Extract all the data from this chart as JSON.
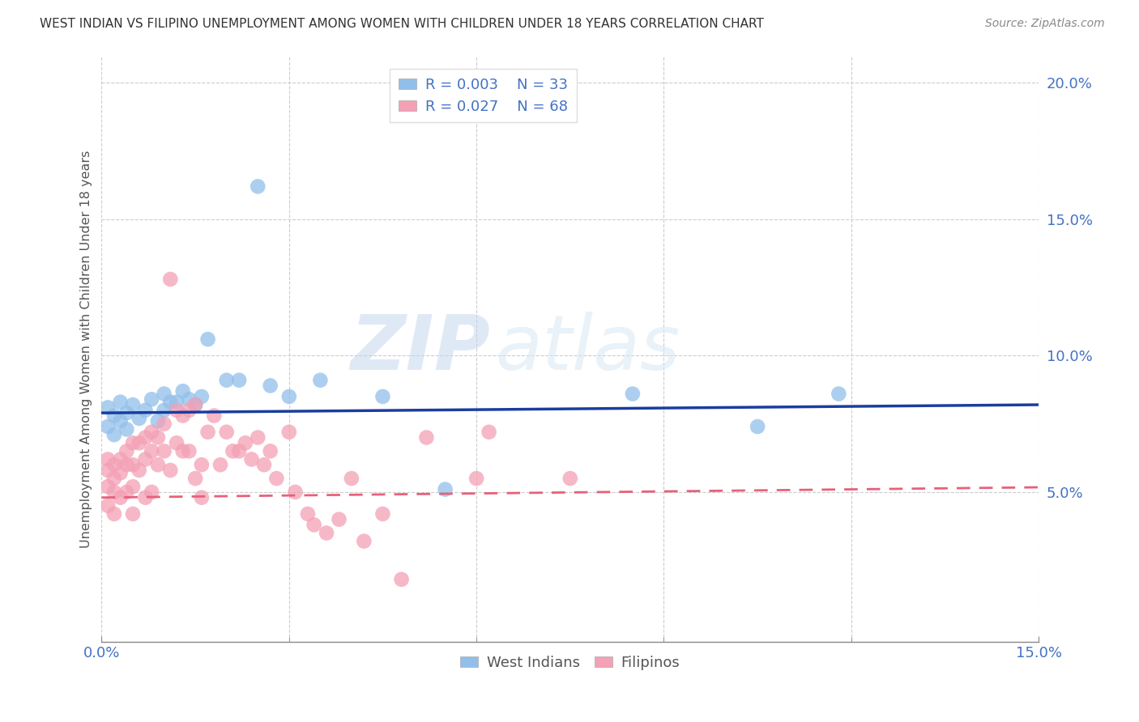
{
  "title": "WEST INDIAN VS FILIPINO UNEMPLOYMENT AMONG WOMEN WITH CHILDREN UNDER 18 YEARS CORRELATION CHART",
  "source": "Source: ZipAtlas.com",
  "ylabel": "Unemployment Among Women with Children Under 18 years",
  "watermark_zip": "ZIP",
  "watermark_atlas": "atlas",
  "xlim": [
    0.0,
    0.15
  ],
  "ylim": [
    -0.005,
    0.21
  ],
  "ytick_vals": [
    0.0,
    0.05,
    0.1,
    0.15,
    0.2
  ],
  "ytick_labels": [
    "",
    "5.0%",
    "10.0%",
    "15.0%",
    "20.0%"
  ],
  "xtick_vals": [
    0.0,
    0.15
  ],
  "xtick_labels": [
    "0.0%",
    "15.0%"
  ],
  "wi_color": "#92bfea",
  "fi_color": "#f4a0b5",
  "wi_line_color": "#1a3d9e",
  "fi_line_color": "#e8607a",
  "wi_trend_intercept": 0.079,
  "wi_trend_slope": 0.02,
  "fi_trend_intercept": 0.048,
  "fi_trend_slope": 0.025,
  "wi_x": [
    0.001,
    0.001,
    0.002,
    0.002,
    0.003,
    0.003,
    0.004,
    0.004,
    0.005,
    0.006,
    0.007,
    0.008,
    0.009,
    0.01,
    0.01,
    0.011,
    0.012,
    0.013,
    0.014,
    0.015,
    0.016,
    0.017,
    0.02,
    0.022,
    0.025,
    0.027,
    0.03,
    0.035,
    0.045,
    0.055,
    0.085,
    0.105,
    0.118
  ],
  "wi_y": [
    0.074,
    0.081,
    0.071,
    0.078,
    0.083,
    0.076,
    0.079,
    0.073,
    0.082,
    0.077,
    0.08,
    0.084,
    0.076,
    0.08,
    0.086,
    0.083,
    0.083,
    0.087,
    0.084,
    0.082,
    0.085,
    0.106,
    0.091,
    0.091,
    0.162,
    0.089,
    0.085,
    0.091,
    0.085,
    0.051,
    0.086,
    0.074,
    0.086
  ],
  "fi_x": [
    0.001,
    0.001,
    0.001,
    0.001,
    0.002,
    0.002,
    0.002,
    0.002,
    0.003,
    0.003,
    0.003,
    0.004,
    0.004,
    0.004,
    0.005,
    0.005,
    0.005,
    0.005,
    0.006,
    0.006,
    0.007,
    0.007,
    0.007,
    0.008,
    0.008,
    0.008,
    0.009,
    0.009,
    0.01,
    0.01,
    0.011,
    0.011,
    0.012,
    0.012,
    0.013,
    0.013,
    0.014,
    0.014,
    0.015,
    0.015,
    0.016,
    0.016,
    0.017,
    0.018,
    0.019,
    0.02,
    0.021,
    0.022,
    0.023,
    0.024,
    0.025,
    0.026,
    0.027,
    0.028,
    0.03,
    0.031,
    0.033,
    0.034,
    0.036,
    0.038,
    0.04,
    0.042,
    0.045,
    0.048,
    0.052,
    0.06,
    0.062,
    0.075
  ],
  "fi_y": [
    0.062,
    0.058,
    0.052,
    0.045,
    0.06,
    0.055,
    0.05,
    0.042,
    0.062,
    0.057,
    0.048,
    0.065,
    0.06,
    0.05,
    0.068,
    0.06,
    0.052,
    0.042,
    0.068,
    0.058,
    0.07,
    0.062,
    0.048,
    0.072,
    0.065,
    0.05,
    0.07,
    0.06,
    0.075,
    0.065,
    0.128,
    0.058,
    0.08,
    0.068,
    0.078,
    0.065,
    0.08,
    0.065,
    0.082,
    0.055,
    0.06,
    0.048,
    0.072,
    0.078,
    0.06,
    0.072,
    0.065,
    0.065,
    0.068,
    0.062,
    0.07,
    0.06,
    0.065,
    0.055,
    0.072,
    0.05,
    0.042,
    0.038,
    0.035,
    0.04,
    0.055,
    0.032,
    0.042,
    0.018,
    0.07,
    0.055,
    0.072,
    0.055
  ],
  "legend_label_west": "West Indians",
  "legend_label_fil": "Filipinos",
  "legend_R_west": "R = 0.003",
  "legend_N_west": "N = 33",
  "legend_R_fil": "R = 0.027",
  "legend_N_fil": "N = 68"
}
